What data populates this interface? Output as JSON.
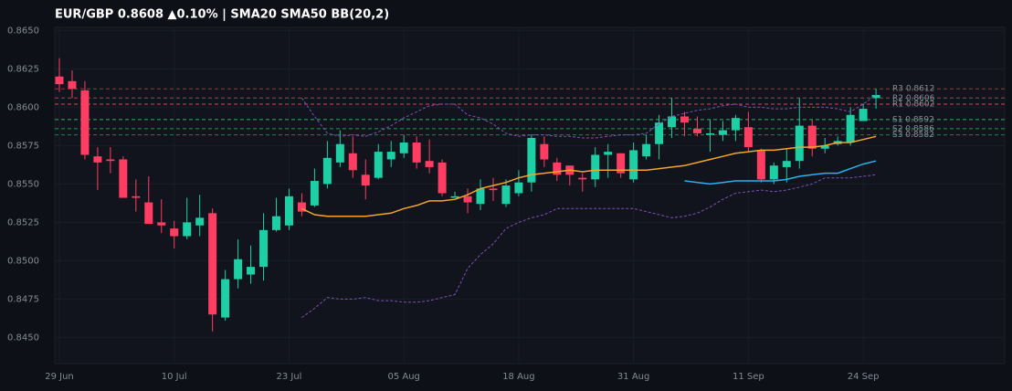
{
  "chart_data": {
    "type": "candlestick",
    "title": "EUR/GBP  0.8608  ▲0.10%  |  SMA20  SMA50  BB(20,2)",
    "categories": [
      "29 Jun",
      null,
      null,
      null,
      null,
      null,
      null,
      null,
      null,
      "10 Jul",
      null,
      null,
      null,
      null,
      null,
      null,
      null,
      null,
      "23 Jul",
      null,
      null,
      null,
      null,
      null,
      null,
      null,
      null,
      "05 Aug",
      null,
      null,
      null,
      null,
      null,
      null,
      null,
      null,
      "18 Aug",
      null,
      null,
      null,
      null,
      null,
      null,
      null,
      null,
      "31 Aug",
      null,
      null,
      null,
      null,
      null,
      null,
      null,
      null,
      "11 Sep",
      null,
      null,
      null,
      null,
      null,
      null,
      null,
      null,
      "24 Sep",
      null
    ],
    "open": [
      0.862,
      0.8617,
      0.8611,
      0.8568,
      0.8566,
      0.8566,
      0.8542,
      0.8538,
      0.8525,
      0.8521,
      0.8516,
      0.8523,
      0.8531,
      0.8463,
      0.8488,
      0.8491,
      0.8496,
      0.852,
      0.8523,
      0.8538,
      0.8536,
      0.855,
      0.8564,
      0.857,
      0.8556,
      0.8554,
      0.8566,
      0.857,
      0.8577,
      0.8565,
      0.8564,
      0.8541,
      0.8542,
      0.8537,
      0.8547,
      0.8537,
      0.8544,
      0.8551,
      0.8576,
      0.8564,
      0.8562,
      0.8554,
      0.8553,
      0.8569,
      0.857,
      0.8553,
      0.8568,
      0.8576,
      0.8587,
      0.8594,
      0.8586,
      0.8582,
      0.8582,
      0.8585,
      0.8587,
      0.8572,
      0.8553,
      0.8561,
      0.8565,
      0.8588,
      0.8573,
      0.8576,
      0.8577,
      0.8591,
      0.8606
    ],
    "high": [
      0.8632,
      0.8624,
      0.8617,
      0.8574,
      0.8574,
      0.8568,
      0.8553,
      0.8555,
      0.854,
      0.8526,
      0.8541,
      0.8543,
      0.8534,
      0.8494,
      0.8514,
      0.851,
      0.8531,
      0.8541,
      0.8547,
      0.8544,
      0.856,
      0.8578,
      0.8585,
      0.8581,
      0.8566,
      0.8576,
      0.8578,
      0.8582,
      0.8581,
      0.8579,
      0.8566,
      0.8545,
      0.8547,
      0.8553,
      0.8554,
      0.8553,
      0.8559,
      0.8582,
      0.8581,
      0.8567,
      0.8562,
      0.8557,
      0.8574,
      0.8576,
      0.857,
      0.8577,
      0.8582,
      0.8595,
      0.8606,
      0.8597,
      0.8594,
      0.8592,
      0.8591,
      0.8595,
      0.8597,
      0.8573,
      0.8564,
      0.8573,
      0.8606,
      0.8592,
      0.858,
      0.8581,
      0.86,
      0.8602,
      0.8612
    ],
    "low": [
      0.861,
      0.8606,
      0.8566,
      0.8546,
      0.8557,
      0.8541,
      0.8532,
      0.8524,
      0.8518,
      0.8508,
      0.8514,
      0.8516,
      0.8454,
      0.8461,
      0.8482,
      0.8485,
      0.8487,
      0.8519,
      0.852,
      0.8529,
      0.8535,
      0.8547,
      0.8561,
      0.8554,
      0.854,
      0.8553,
      0.8561,
      0.8567,
      0.856,
      0.8557,
      0.8542,
      0.8541,
      0.8531,
      0.8533,
      0.8539,
      0.8535,
      0.8542,
      0.8545,
      0.8561,
      0.8552,
      0.8549,
      0.8545,
      0.8548,
      0.8554,
      0.8554,
      0.8551,
      0.8566,
      0.8566,
      0.858,
      0.8581,
      0.8581,
      0.8571,
      0.8578,
      0.8578,
      0.8571,
      0.8551,
      0.855,
      0.8551,
      0.856,
      0.8568,
      0.857,
      0.8575,
      0.8575,
      0.8591,
      0.8599
    ],
    "close": [
      0.8615,
      0.8612,
      0.8569,
      0.8564,
      0.8565,
      0.8541,
      0.8541,
      0.8524,
      0.8523,
      0.8516,
      0.8525,
      0.8528,
      0.8465,
      0.8488,
      0.8501,
      0.8496,
      0.852,
      0.8529,
      0.8542,
      0.8532,
      0.8552,
      0.8567,
      0.8576,
      0.8559,
      0.8549,
      0.8571,
      0.8571,
      0.8577,
      0.8564,
      0.8561,
      0.8544,
      0.8542,
      0.8538,
      0.8547,
      0.8546,
      0.8549,
      0.8551,
      0.858,
      0.8566,
      0.8556,
      0.8556,
      0.8553,
      0.8569,
      0.8571,
      0.8557,
      0.8572,
      0.8576,
      0.859,
      0.8594,
      0.859,
      0.8583,
      0.8583,
      0.8585,
      0.8593,
      0.8574,
      0.8553,
      0.8562,
      0.8565,
      0.8588,
      0.8573,
      0.8575,
      0.8578,
      0.8595,
      0.8599,
      0.8608
    ],
    "up_color": "#1ccfa5",
    "down_color": "#ff3d62",
    "series": [
      {
        "color": "#f5a52a",
        "dashed": false,
        "values": [
          null,
          null,
          null,
          null,
          null,
          null,
          null,
          null,
          null,
          null,
          null,
          null,
          null,
          null,
          null,
          null,
          null,
          null,
          null,
          0.8534,
          0.853,
          0.8529,
          0.8529,
          0.8529,
          0.8529,
          0.853,
          0.8531,
          0.8534,
          0.8536,
          0.8539,
          0.8539,
          0.854,
          0.8543,
          0.8547,
          0.8549,
          0.8551,
          0.8554,
          0.8556,
          0.8557,
          0.8558,
          0.8559,
          0.8558,
          0.8559,
          0.8559,
          0.8559,
          0.8559,
          0.8559,
          0.856,
          0.8561,
          0.8562,
          0.8564,
          0.8566,
          0.8568,
          0.857,
          0.8571,
          0.8572,
          0.8572,
          0.8573,
          0.8574,
          0.8574,
          0.8575,
          0.8577,
          0.8577,
          0.8579,
          0.8581
        ]
      },
      {
        "color": "#2bb0f0",
        "dashed": false,
        "values": [
          null,
          null,
          null,
          null,
          null,
          null,
          null,
          null,
          null,
          null,
          null,
          null,
          null,
          null,
          null,
          null,
          null,
          null,
          null,
          null,
          null,
          null,
          null,
          null,
          null,
          null,
          null,
          null,
          null,
          null,
          null,
          null,
          null,
          null,
          null,
          null,
          null,
          null,
          null,
          null,
          null,
          null,
          null,
          null,
          null,
          null,
          null,
          null,
          null,
          0.8552,
          0.8551,
          0.855,
          0.8551,
          0.8552,
          0.8552,
          0.8552,
          0.8552,
          0.8553,
          0.8555,
          0.8556,
          0.8557,
          0.8557,
          0.856,
          0.8563,
          0.8565
        ]
      },
      {
        "color": "#7d4fb8",
        "dashed": true,
        "values": [
          null,
          null,
          null,
          null,
          null,
          null,
          null,
          null,
          null,
          null,
          null,
          null,
          null,
          null,
          null,
          null,
          null,
          null,
          null,
          0.8606,
          0.8594,
          0.8583,
          0.8581,
          0.8582,
          0.8581,
          0.8584,
          0.8588,
          0.8593,
          0.8597,
          0.8601,
          0.8602,
          0.8602,
          0.8595,
          0.8593,
          0.8589,
          0.8583,
          0.8581,
          0.8582,
          0.8582,
          0.8581,
          0.8581,
          0.858,
          0.858,
          0.8581,
          0.8582,
          0.8582,
          0.8583,
          0.8589,
          0.8594,
          0.8596,
          0.8598,
          0.8599,
          0.8601,
          0.8602,
          0.86,
          0.86,
          0.8599,
          0.8599,
          0.86,
          0.86,
          0.86,
          0.8599,
          0.8597,
          0.8602,
          0.8608
        ]
      },
      {
        "color": "#7d4fb8",
        "dashed": true,
        "values": [
          null,
          null,
          null,
          null,
          null,
          null,
          null,
          null,
          null,
          null,
          null,
          null,
          null,
          null,
          null,
          null,
          null,
          null,
          null,
          0.8463,
          0.8469,
          0.8476,
          0.8475,
          0.8475,
          0.8476,
          0.8474,
          0.8474,
          0.8473,
          0.8473,
          0.8474,
          0.8476,
          0.8478,
          0.8495,
          0.8504,
          0.8511,
          0.8521,
          0.8525,
          0.8528,
          0.853,
          0.8534,
          0.8534,
          0.8534,
          0.8534,
          0.8534,
          0.8534,
          0.8534,
          0.8532,
          0.853,
          0.8528,
          0.8529,
          0.8531,
          0.8535,
          0.854,
          0.8544,
          0.8545,
          0.8546,
          0.8545,
          0.8546,
          0.8548,
          0.855,
          0.8554,
          0.8554,
          0.8554,
          0.8555,
          0.8556
        ]
      }
    ],
    "levels": [
      {
        "value": 0.8612,
        "label": "R3 0.8612",
        "color": "#b8323f"
      },
      {
        "value": 0.8606,
        "label": "R2 0.8606",
        "color": "#d8394a"
      },
      {
        "value": 0.8602,
        "label": "R1 0.8602",
        "color": "#f0485a"
      },
      {
        "value": 0.8592,
        "label": "S1 0.8592",
        "color": "#2fc46a"
      },
      {
        "value": 0.8586,
        "label": "S2 0.8586",
        "color": "#25a85a"
      },
      {
        "value": 0.8582,
        "label": "S3 0.8582",
        "color": "#1f8c4b"
      }
    ],
    "ylim": [
      0.8433,
      0.8652
    ],
    "yticks": [
      {
        "value": 0.845,
        "label": "0.8450"
      },
      0.8475,
      {
        "value": 0.85,
        "label": "0.8500"
      },
      0.8525,
      {
        "value": 0.855,
        "label": "0.8550"
      },
      0.8575,
      {
        "value": 0.86,
        "label": "0.8600"
      },
      0.8625,
      {
        "value": 0.865,
        "label": "0.8650"
      }
    ],
    "grid": true
  }
}
